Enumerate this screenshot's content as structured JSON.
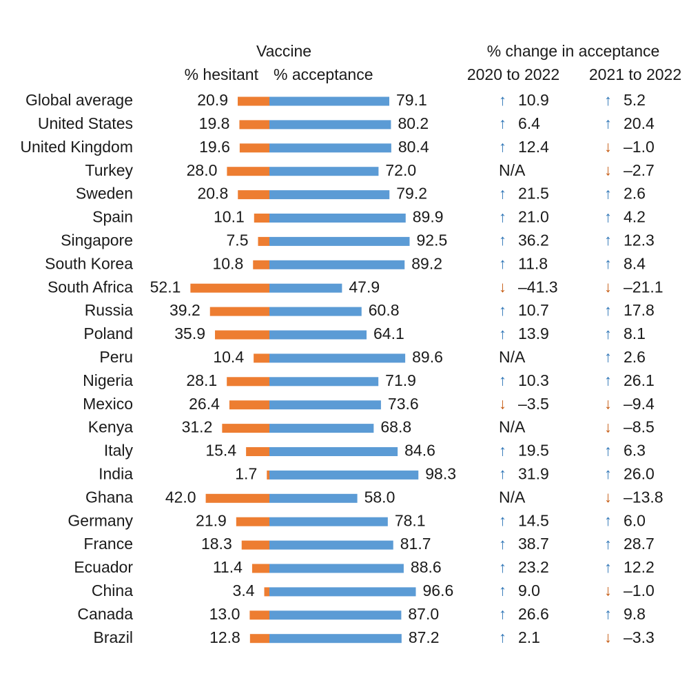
{
  "chart_data": {
    "type": "bar",
    "headers": {
      "vaccine": "Vaccine",
      "hesitant": "% hesitant",
      "acceptance": "% acceptance",
      "change": "% change in acceptance",
      "period1": "2020 to 2022",
      "period2": "2021 to 2022"
    },
    "colors": {
      "hesitant": "#ed7d31",
      "acceptance": "#5b9bd5",
      "up": "#2e75b6",
      "down": "#c55a11"
    },
    "rows": [
      {
        "country": "Global average",
        "hesitant": "20.9",
        "acceptance": "79.1",
        "c1": "10.9",
        "c1dir": "up",
        "c2": "5.2",
        "c2dir": "up"
      },
      {
        "country": "United States",
        "hesitant": "19.8",
        "acceptance": "80.2",
        "c1": "6.4",
        "c1dir": "up",
        "c2": "20.4",
        "c2dir": "up"
      },
      {
        "country": "United Kingdom",
        "hesitant": "19.6",
        "acceptance": "80.4",
        "c1": "12.4",
        "c1dir": "up",
        "c2": "–1.0",
        "c2dir": "down"
      },
      {
        "country": "Turkey",
        "hesitant": "28.0",
        "acceptance": "72.0",
        "c1": "N/A",
        "c1dir": "none",
        "c2": "–2.7",
        "c2dir": "down"
      },
      {
        "country": "Sweden",
        "hesitant": "20.8",
        "acceptance": "79.2",
        "c1": "21.5",
        "c1dir": "up",
        "c2": "2.6",
        "c2dir": "up"
      },
      {
        "country": "Spain",
        "hesitant": "10.1",
        "acceptance": "89.9",
        "c1": "21.0",
        "c1dir": "up",
        "c2": "4.2",
        "c2dir": "up"
      },
      {
        "country": "Singapore",
        "hesitant": "7.5",
        "acceptance": "92.5",
        "c1": "36.2",
        "c1dir": "up",
        "c2": "12.3",
        "c2dir": "up"
      },
      {
        "country": "South Korea",
        "hesitant": "10.8",
        "acceptance": "89.2",
        "c1": "11.8",
        "c1dir": "up",
        "c2": "8.4",
        "c2dir": "up"
      },
      {
        "country": "South Africa",
        "hesitant": "52.1",
        "acceptance": "47.9",
        "c1": "–41.3",
        "c1dir": "down",
        "c2": "–21.1",
        "c2dir": "down"
      },
      {
        "country": "Russia",
        "hesitant": "39.2",
        "acceptance": "60.8",
        "c1": "10.7",
        "c1dir": "up",
        "c2": "17.8",
        "c2dir": "up"
      },
      {
        "country": "Poland",
        "hesitant": "35.9",
        "acceptance": "64.1",
        "c1": "13.9",
        "c1dir": "up",
        "c2": "8.1",
        "c2dir": "up"
      },
      {
        "country": "Peru",
        "hesitant": "10.4",
        "acceptance": "89.6",
        "c1": "N/A",
        "c1dir": "none",
        "c2": "2.6",
        "c2dir": "up"
      },
      {
        "country": "Nigeria",
        "hesitant": "28.1",
        "acceptance": "71.9",
        "c1": "10.3",
        "c1dir": "up",
        "c2": "26.1",
        "c2dir": "up"
      },
      {
        "country": "Mexico",
        "hesitant": "26.4",
        "acceptance": "73.6",
        "c1": "–3.5",
        "c1dir": "down",
        "c2": "–9.4",
        "c2dir": "down"
      },
      {
        "country": "Kenya",
        "hesitant": "31.2",
        "acceptance": "68.8",
        "c1": "N/A",
        "c1dir": "none",
        "c2": "–8.5",
        "c2dir": "down"
      },
      {
        "country": "Italy",
        "hesitant": "15.4",
        "acceptance": "84.6",
        "c1": "19.5",
        "c1dir": "up",
        "c2": "6.3",
        "c2dir": "up"
      },
      {
        "country": "India",
        "hesitant": "1.7",
        "acceptance": "98.3",
        "c1": "31.9",
        "c1dir": "up",
        "c2": "26.0",
        "c2dir": "up"
      },
      {
        "country": "Ghana",
        "hesitant": "42.0",
        "acceptance": "58.0",
        "c1": "N/A",
        "c1dir": "none",
        "c2": "–13.8",
        "c2dir": "down"
      },
      {
        "country": "Germany",
        "hesitant": "21.9",
        "acceptance": "78.1",
        "c1": "14.5",
        "c1dir": "up",
        "c2": "6.0",
        "c2dir": "up"
      },
      {
        "country": "France",
        "hesitant": "18.3",
        "acceptance": "81.7",
        "c1": "38.7",
        "c1dir": "up",
        "c2": "28.7",
        "c2dir": "up"
      },
      {
        "country": "Ecuador",
        "hesitant": "11.4",
        "acceptance": "88.6",
        "c1": "23.2",
        "c1dir": "up",
        "c2": "12.2",
        "c2dir": "up"
      },
      {
        "country": "China",
        "hesitant": "3.4",
        "acceptance": "96.6",
        "c1": "9.0",
        "c1dir": "up",
        "c2": "–1.0",
        "c2dir": "down"
      },
      {
        "country": "Canada",
        "hesitant": "13.0",
        "acceptance": "87.0",
        "c1": "26.6",
        "c1dir": "up",
        "c2": "9.8",
        "c2dir": "up"
      },
      {
        "country": "Brazil",
        "hesitant": "12.8",
        "acceptance": "87.2",
        "c1": "2.1",
        "c1dir": "up",
        "c2": "–3.3",
        "c2dir": "down"
      }
    ]
  }
}
